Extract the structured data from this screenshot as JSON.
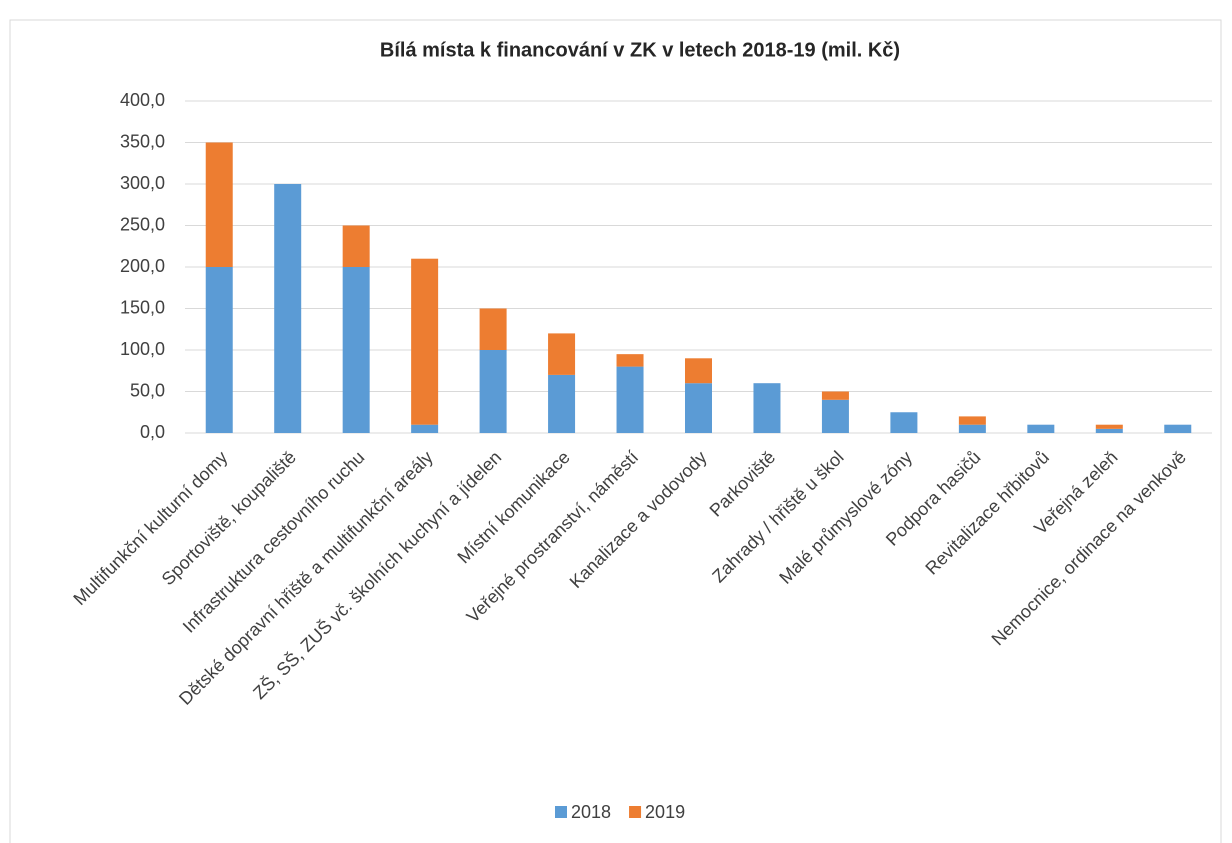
{
  "chart_data": {
    "type": "stacked_bar",
    "title": "Bílá místa k financování v ZK v letech 2018-19 (mil. Kč)",
    "categories": [
      "Multifunkční kulturní domy",
      "Sportoviště, koupaliště",
      "Infrastruktura cestovního ruchu",
      "Dětské dopravní hřiště a multifunkční areály",
      "ZŠ, SŠ, ZUŠ vč. školních kuchyní a jídelen",
      "Místní komunikace",
      "Veřejné prostranství, náměstí",
      "Kanalizace a vodovody",
      "Parkoviště",
      "Zahrady / hřiště u škol",
      "Malé průmyslové zóny",
      "Podpora hasičů",
      "Revitalizace hřbitovů",
      "Veřejná zeleň",
      "Nemocnice, ordinace na venkově"
    ],
    "series": [
      {
        "name": "2018",
        "color": "#5b9bd5",
        "values": [
          200,
          300,
          200,
          10,
          100,
          70,
          80,
          60,
          60,
          40,
          25,
          10,
          10,
          5,
          10
        ]
      },
      {
        "name": "2019",
        "color": "#ed7d31",
        "values": [
          150,
          0,
          50,
          200,
          50,
          50,
          15,
          30,
          0,
          10,
          0,
          10,
          0,
          5,
          0
        ]
      }
    ],
    "ylim": [
      0,
      400
    ],
    "yticks": [
      {
        "value": 0,
        "label": "0,0"
      },
      {
        "value": 50,
        "label": "50,0"
      },
      {
        "value": 100,
        "label": "100,0"
      },
      {
        "value": 150,
        "label": "150,0"
      },
      {
        "value": 200,
        "label": "200,0"
      },
      {
        "value": 250,
        "label": "250,0"
      },
      {
        "value": 300,
        "label": "300,0"
      },
      {
        "value": 350,
        "label": "350,0"
      },
      {
        "value": 400,
        "label": "400,0"
      }
    ],
    "grid": true,
    "legend": "bottom"
  }
}
